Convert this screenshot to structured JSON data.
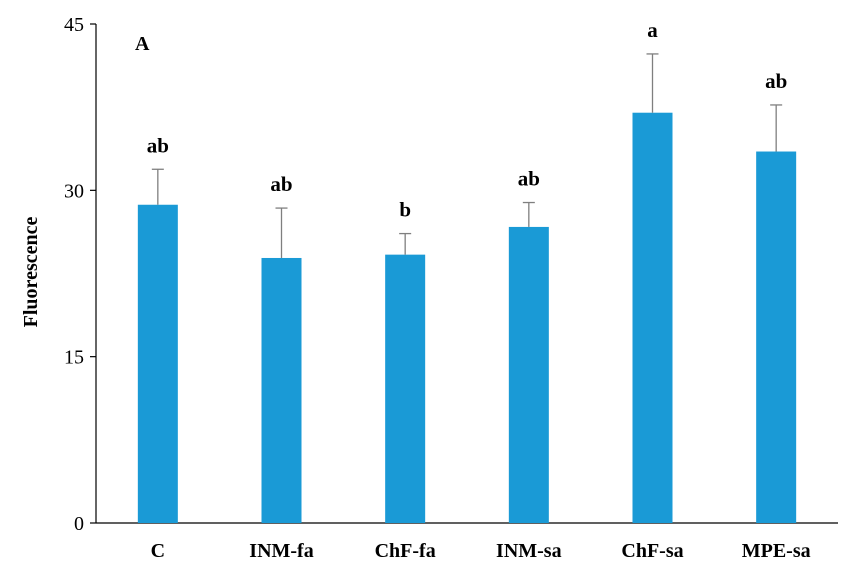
{
  "chart_data": {
    "type": "bar",
    "panel_label": "A",
    "ylabel": "Fluorescence",
    "ylim": [
      0,
      45
    ],
    "yticks": [
      "0",
      "15",
      "30",
      "45"
    ],
    "grid": false,
    "legend": "none",
    "bar_color": "#1a9ad6",
    "error_color": "#7f7f7f",
    "categories": [
      "C",
      "INM-fa",
      "ChF-fa",
      "INM-sa",
      "ChF-sa",
      "MPE-sa"
    ],
    "values": [
      28.7,
      23.9,
      24.2,
      26.7,
      37.0,
      33.5
    ],
    "errors": [
      3.2,
      4.5,
      1.9,
      2.2,
      5.3,
      4.2
    ],
    "significance": [
      "ab",
      "ab",
      "b",
      "ab",
      "a",
      "ab"
    ]
  }
}
